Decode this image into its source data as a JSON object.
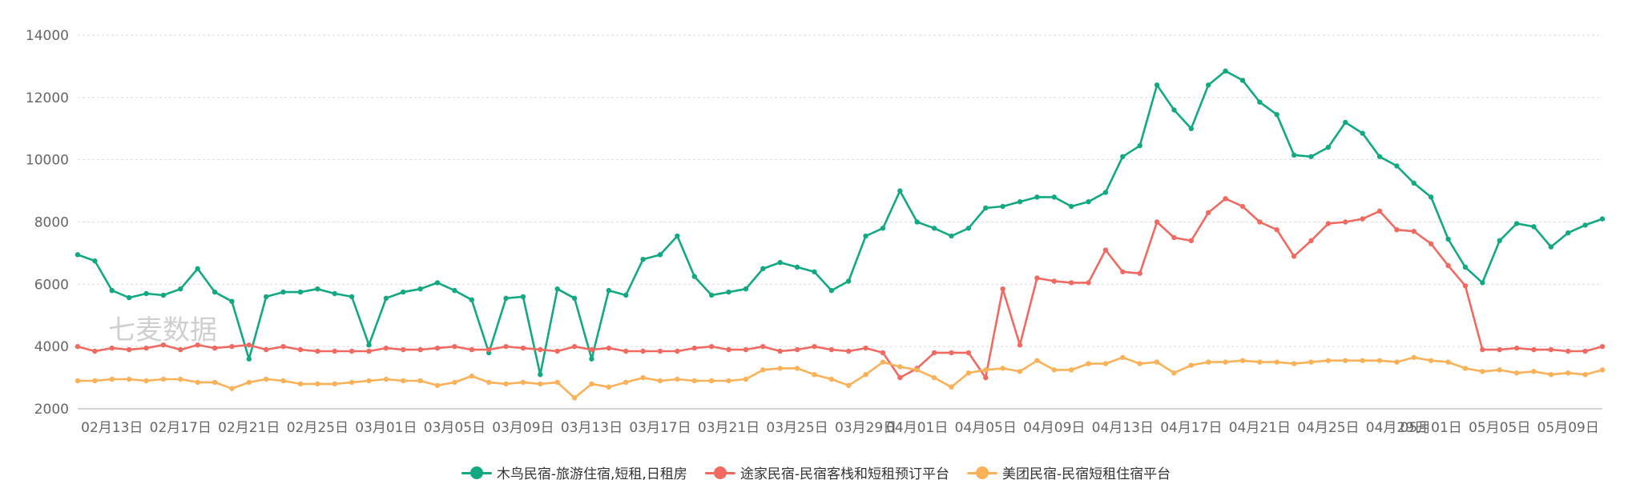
{
  "watermark": "七麦数据",
  "chart_data": {
    "type": "line",
    "title": "",
    "xlabel": "",
    "ylabel": "",
    "ylim": [
      2000,
      14000
    ],
    "yticks": [
      2000,
      4000,
      6000,
      8000,
      10000,
      12000,
      14000
    ],
    "grid": true,
    "legend_position": "bottom-center",
    "x_tick_labels": [
      "02月13日",
      "02月17日",
      "02月21日",
      "02月25日",
      "03月01日",
      "03月05日",
      "03月09日",
      "03月13日",
      "03月17日",
      "03月21日",
      "03月25日",
      "03月29日",
      "04月01日",
      "04月05日",
      "04月09日",
      "04月13日",
      "04月17日",
      "04月21日",
      "04月25日",
      "04月29日",
      "05月01日",
      "05月05日",
      "05月09日"
    ],
    "x_tick_indices": [
      2,
      6,
      10,
      14,
      18,
      22,
      26,
      30,
      34,
      38,
      42,
      46,
      49,
      53,
      57,
      61,
      65,
      69,
      73,
      77,
      79,
      83,
      87
    ],
    "series": [
      {
        "name": "木鸟民宿-旅游住宿,短租,日租房",
        "color": "#12a982",
        "values": [
          6950,
          6750,
          5800,
          5570,
          5700,
          5650,
          5850,
          6500,
          5750,
          5450,
          3600,
          5600,
          5750,
          5750,
          5850,
          5700,
          5600,
          4050,
          5550,
          5750,
          5850,
          6050,
          5800,
          5500,
          3800,
          5550,
          5600,
          3100,
          5850,
          5550,
          3600,
          5800,
          5650,
          6800,
          6950,
          7550,
          6250,
          5650,
          5750,
          5850,
          6500,
          6700,
          6550,
          6400,
          5800,
          6100,
          7550,
          7800,
          9000,
          8000,
          7800,
          7550,
          7800,
          8450,
          8500,
          8650,
          8800,
          8800,
          8500,
          8650,
          8950,
          10100,
          10450,
          12400,
          11600,
          11000,
          12400,
          12850,
          12550,
          11850,
          11450,
          10150,
          10100,
          10400,
          11200,
          10850,
          10100,
          9800,
          9250,
          8800,
          7450,
          6550,
          6050,
          7400,
          7950,
          7850,
          7200,
          7650,
          7900,
          8100
        ]
      },
      {
        "name": "途家民宿-民宿客栈和短租预订平台",
        "color": "#f06a61",
        "values": [
          4000,
          3850,
          3950,
          3900,
          3950,
          4050,
          3900,
          4050,
          3950,
          4000,
          4050,
          3900,
          4000,
          3900,
          3850,
          3850,
          3850,
          3850,
          3950,
          3900,
          3900,
          3950,
          4000,
          3900,
          3900,
          4000,
          3950,
          3900,
          3850,
          4000,
          3900,
          3950,
          3850,
          3850,
          3850,
          3850,
          3950,
          4000,
          3900,
          3900,
          4000,
          3850,
          3900,
          4000,
          3900,
          3850,
          3950,
          3800,
          3000,
          3300,
          3800,
          3800,
          3800,
          3000,
          5850,
          4050,
          6200,
          6100,
          6050,
          6050,
          7100,
          6400,
          6350,
          8000,
          7500,
          7400,
          8300,
          8750,
          8500,
          8000,
          7750,
          6900,
          7400,
          7950,
          8000,
          8100,
          8350,
          7750,
          7700,
          7300,
          6600,
          5950,
          3900,
          3900,
          3950,
          3900,
          3900,
          3850,
          3850,
          4000
        ]
      },
      {
        "name": "美团民宿-民宿短租住宿平台",
        "color": "#fbb158",
        "values": [
          2900,
          2900,
          2950,
          2950,
          2900,
          2950,
          2950,
          2850,
          2850,
          2650,
          2850,
          2950,
          2900,
          2800,
          2800,
          2800,
          2850,
          2900,
          2950,
          2900,
          2900,
          2750,
          2850,
          3050,
          2850,
          2800,
          2850,
          2800,
          2850,
          2350,
          2800,
          2700,
          2850,
          3000,
          2900,
          2950,
          2900,
          2900,
          2900,
          2950,
          3250,
          3300,
          3300,
          3100,
          2950,
          2750,
          3100,
          3500,
          3350,
          3250,
          3000,
          2700,
          3150,
          3250,
          3300,
          3200,
          3550,
          3250,
          3250,
          3450,
          3450,
          3650,
          3450,
          3500,
          3150,
          3400,
          3500,
          3500,
          3550,
          3500,
          3500,
          3450,
          3500,
          3550,
          3550,
          3550,
          3550,
          3500,
          3650,
          3550,
          3500,
          3300,
          3200,
          3250,
          3150,
          3200,
          3100,
          3150,
          3100,
          3250
        ]
      }
    ]
  }
}
